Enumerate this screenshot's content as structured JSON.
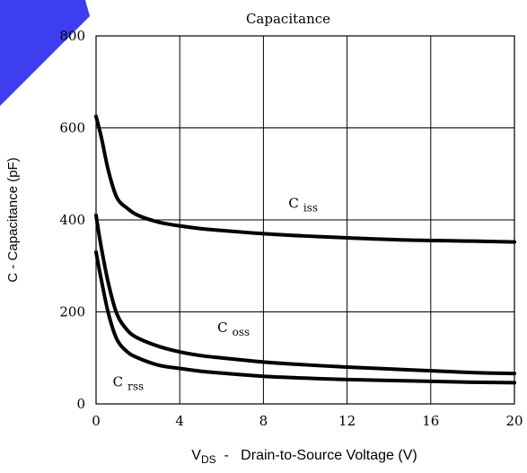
{
  "chart_data": {
    "type": "line",
    "title": "Capacitance",
    "ylabel": "C  -  Capacitance (pF)",
    "xlabel": {
      "symbol": "V",
      "subscript": "DS",
      "text": "  -   Drain-to-Source Voltage (V)"
    },
    "xlim": [
      0,
      20
    ],
    "ylim": [
      0,
      800
    ],
    "xticks": [
      0,
      4,
      8,
      12,
      16,
      20
    ],
    "yticks": [
      0,
      200,
      400,
      600,
      800
    ],
    "grid": true,
    "series": [
      {
        "name": "C iss",
        "label_main": "C",
        "label_sub": "iss",
        "label_at": [
          9.2,
          426
        ],
        "x": [
          0,
          0.25,
          0.6,
          1.0,
          1.5,
          2.0,
          3.0,
          4.0,
          5.0,
          6.0,
          8.0,
          10.0,
          12.0,
          15.0,
          18.0,
          20.0
        ],
        "values": [
          625,
          580,
          505,
          448,
          425,
          410,
          395,
          387,
          381,
          377,
          370,
          365,
          361,
          356,
          354,
          352
        ]
      },
      {
        "name": "C oss",
        "label_main": "C",
        "label_sub": "oss",
        "label_at": [
          5.8,
          156
        ],
        "x": [
          0,
          0.25,
          0.6,
          1.0,
          1.5,
          2.0,
          3.0,
          4.0,
          5.0,
          6.0,
          8.0,
          10.0,
          12.0,
          15.0,
          18.0,
          20.0
        ],
        "values": [
          410,
          340,
          260,
          195,
          160,
          143,
          125,
          113,
          105,
          100,
          91,
          85,
          80,
          74,
          68,
          66
        ]
      },
      {
        "name": "C rss",
        "label_main": "C",
        "label_sub": "rss",
        "label_at": [
          0.8,
          38
        ],
        "x": [
          0,
          0.25,
          0.6,
          1.0,
          1.5,
          2.0,
          3.0,
          4.0,
          5.0,
          6.0,
          8.0,
          10.0,
          12.0,
          15.0,
          18.0,
          20.0
        ],
        "values": [
          330,
          270,
          195,
          140,
          113,
          100,
          84,
          77,
          71,
          67,
          60,
          56,
          53,
          50,
          47,
          46
        ]
      }
    ]
  },
  "colors": {
    "line": "#000000",
    "grid": "#000000",
    "accent": "#3434F0"
  }
}
